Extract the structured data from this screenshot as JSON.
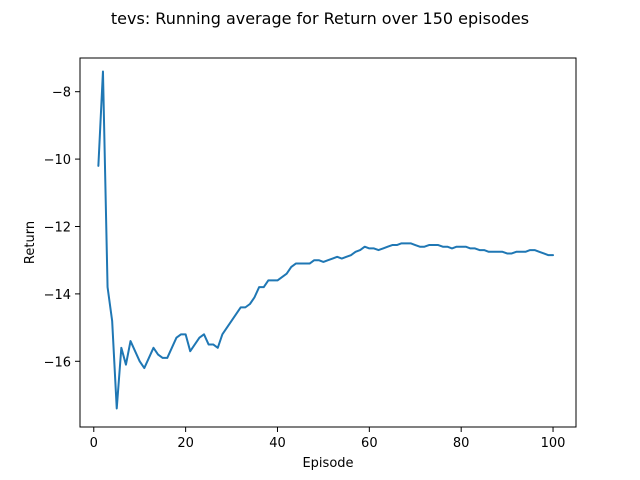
{
  "chart_data": {
    "type": "line",
    "title": "tevs: Running average for Return over 150 episodes",
    "xlabel": "Episode",
    "ylabel": "Return",
    "xlim": [
      -3,
      105
    ],
    "ylim": [
      -17.95,
      -7.0
    ],
    "xticks": [
      0,
      20,
      40,
      60,
      80,
      100
    ],
    "yticks": [
      -16,
      -14,
      -12,
      -10,
      -8
    ],
    "grid": false,
    "series": [
      {
        "color": "#1f77b4",
        "x": [
          1,
          2,
          3,
          4,
          5,
          6,
          7,
          8,
          9,
          10,
          11,
          12,
          13,
          14,
          15,
          16,
          17,
          18,
          19,
          20,
          21,
          22,
          23,
          24,
          25,
          26,
          27,
          28,
          29,
          30,
          31,
          32,
          33,
          34,
          35,
          36,
          37,
          38,
          39,
          40,
          41,
          42,
          43,
          44,
          45,
          46,
          47,
          48,
          49,
          50,
          51,
          52,
          53,
          54,
          55,
          56,
          57,
          58,
          59,
          60,
          61,
          62,
          63,
          64,
          65,
          66,
          67,
          68,
          69,
          70,
          71,
          72,
          73,
          74,
          75,
          76,
          77,
          78,
          79,
          80,
          81,
          82,
          83,
          84,
          85,
          86,
          87,
          88,
          89,
          90,
          91,
          92,
          93,
          94,
          95,
          96,
          97,
          98,
          99,
          100
        ],
        "values": [
          -10.2,
          -7.4,
          -13.8,
          -14.8,
          -17.4,
          -15.6,
          -16.1,
          -15.4,
          -15.7,
          -16.0,
          -16.2,
          -15.9,
          -15.6,
          -15.8,
          -15.9,
          -15.9,
          -15.6,
          -15.3,
          -15.2,
          -15.2,
          -15.7,
          -15.5,
          -15.3,
          -15.2,
          -15.5,
          -15.5,
          -15.6,
          -15.2,
          -15.0,
          -14.8,
          -14.6,
          -14.4,
          -14.4,
          -14.3,
          -14.1,
          -13.8,
          -13.8,
          -13.6,
          -13.6,
          -13.6,
          -13.5,
          -13.4,
          -13.2,
          -13.1,
          -13.1,
          -13.1,
          -13.1,
          -13.0,
          -13.0,
          -13.05,
          -13.0,
          -12.95,
          -12.9,
          -12.95,
          -12.9,
          -12.85,
          -12.75,
          -12.7,
          -12.6,
          -12.65,
          -12.65,
          -12.7,
          -12.65,
          -12.6,
          -12.55,
          -12.55,
          -12.5,
          -12.5,
          -12.5,
          -12.55,
          -12.6,
          -12.6,
          -12.55,
          -12.55,
          -12.55,
          -12.6,
          -12.6,
          -12.65,
          -12.6,
          -12.6,
          -12.6,
          -12.65,
          -12.65,
          -12.7,
          -12.7,
          -12.75,
          -12.75,
          -12.75,
          -12.75,
          -12.8,
          -12.8,
          -12.75,
          -12.75,
          -12.75,
          -12.7,
          -12.7,
          -12.75,
          -12.8,
          -12.85,
          -12.85
        ]
      }
    ]
  }
}
